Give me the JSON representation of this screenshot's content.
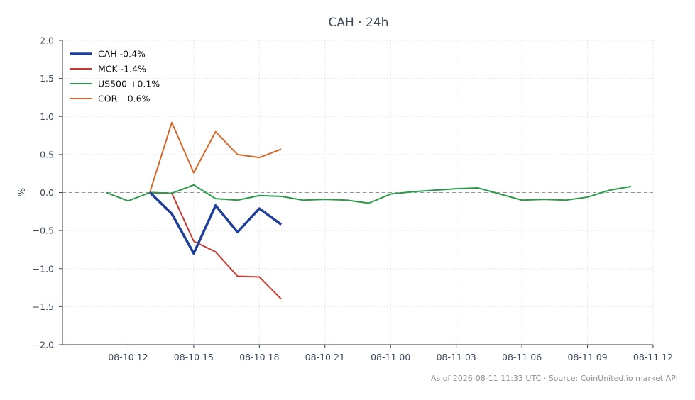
{
  "chart_data": {
    "type": "line",
    "title": "CAH · 24h",
    "xlabel": "",
    "ylabel": "%",
    "ylim": [
      -2.0,
      2.0
    ],
    "yticks": [
      "2.0",
      "1.5",
      "1.0",
      "0.5",
      "0.0",
      "−0.5",
      "−1.0",
      "−1.5",
      "−2.0"
    ],
    "ytick_values": [
      2.0,
      1.5,
      1.0,
      0.5,
      0.0,
      -0.5,
      -1.0,
      -1.5,
      -2.0
    ],
    "xlim": [
      "2026-08-10 09:00",
      "2026-08-11 12:00"
    ],
    "xticks": [
      "08-10 12",
      "08-10 15",
      "08-10 18",
      "08-10 21",
      "08-11 00",
      "08-11 03",
      "08-11 06",
      "08-11 09",
      "08-11 12"
    ],
    "xtick_values": [
      "2026-08-10 12:00",
      "2026-08-10 15:00",
      "2026-08-10 18:00",
      "2026-08-10 21:00",
      "2026-08-11 00:00",
      "2026-08-11 03:00",
      "2026-08-11 06:00",
      "2026-08-11 09:00",
      "2026-08-11 12:00"
    ],
    "grid": true,
    "legend_position": "top-left",
    "reference_line": 0.0,
    "series": [
      {
        "name": "CAH -0.4%",
        "color": "#1f3f99",
        "width": 3.5,
        "x": [
          "2026-08-10 13:00",
          "2026-08-10 14:00",
          "2026-08-10 15:00",
          "2026-08-10 16:00",
          "2026-08-10 17:00",
          "2026-08-10 18:00",
          "2026-08-10 19:00"
        ],
        "y": [
          0.0,
          -0.28,
          -0.8,
          -0.17,
          -0.52,
          -0.21,
          -0.42
        ]
      },
      {
        "name": "MCK -1.4%",
        "color": "#c43a31",
        "width": 2,
        "x": [
          "2026-08-10 13:00",
          "2026-08-10 14:00",
          "2026-08-10 15:00",
          "2026-08-10 16:00",
          "2026-08-10 17:00",
          "2026-08-10 18:00",
          "2026-08-10 19:00"
        ],
        "y": [
          0.0,
          -0.01,
          -0.64,
          -0.78,
          -1.1,
          -1.11,
          -1.4
        ]
      },
      {
        "name": "US500 +0.1%",
        "color": "#2a9a48",
        "width": 2,
        "x": [
          "2026-08-10 11:00",
          "2026-08-10 12:00",
          "2026-08-10 13:00",
          "2026-08-10 14:00",
          "2026-08-10 15:00",
          "2026-08-10 16:00",
          "2026-08-10 17:00",
          "2026-08-10 18:00",
          "2026-08-10 19:00",
          "2026-08-10 20:00",
          "2026-08-10 21:00",
          "2026-08-10 22:00",
          "2026-08-10 23:00",
          "2026-08-11 00:00",
          "2026-08-11 01:00",
          "2026-08-11 02:00",
          "2026-08-11 03:00",
          "2026-08-11 04:00",
          "2026-08-11 05:00",
          "2026-08-11 06:00",
          "2026-08-11 07:00",
          "2026-08-11 08:00",
          "2026-08-11 09:00",
          "2026-08-11 10:00",
          "2026-08-11 11:00"
        ],
        "y": [
          0.0,
          -0.11,
          0.0,
          -0.01,
          0.1,
          -0.08,
          -0.1,
          -0.04,
          -0.05,
          -0.1,
          -0.09,
          -0.1,
          -0.14,
          -0.02,
          0.01,
          0.03,
          0.05,
          0.06,
          -0.02,
          -0.1,
          -0.09,
          -0.1,
          -0.06,
          0.03,
          0.08
        ]
      },
      {
        "name": "COR +0.6%",
        "color": "#d4682a",
        "width": 2,
        "x": [
          "2026-08-10 13:00",
          "2026-08-10 14:00",
          "2026-08-10 15:00",
          "2026-08-10 16:00",
          "2026-08-10 17:00",
          "2026-08-10 18:00",
          "2026-08-10 19:00"
        ],
        "y": [
          0.01,
          0.92,
          0.26,
          0.8,
          0.5,
          0.46,
          0.57
        ]
      }
    ]
  },
  "footer": "As of 2026-08-11 11:33 UTC · Source: CoinUnited.io market API"
}
